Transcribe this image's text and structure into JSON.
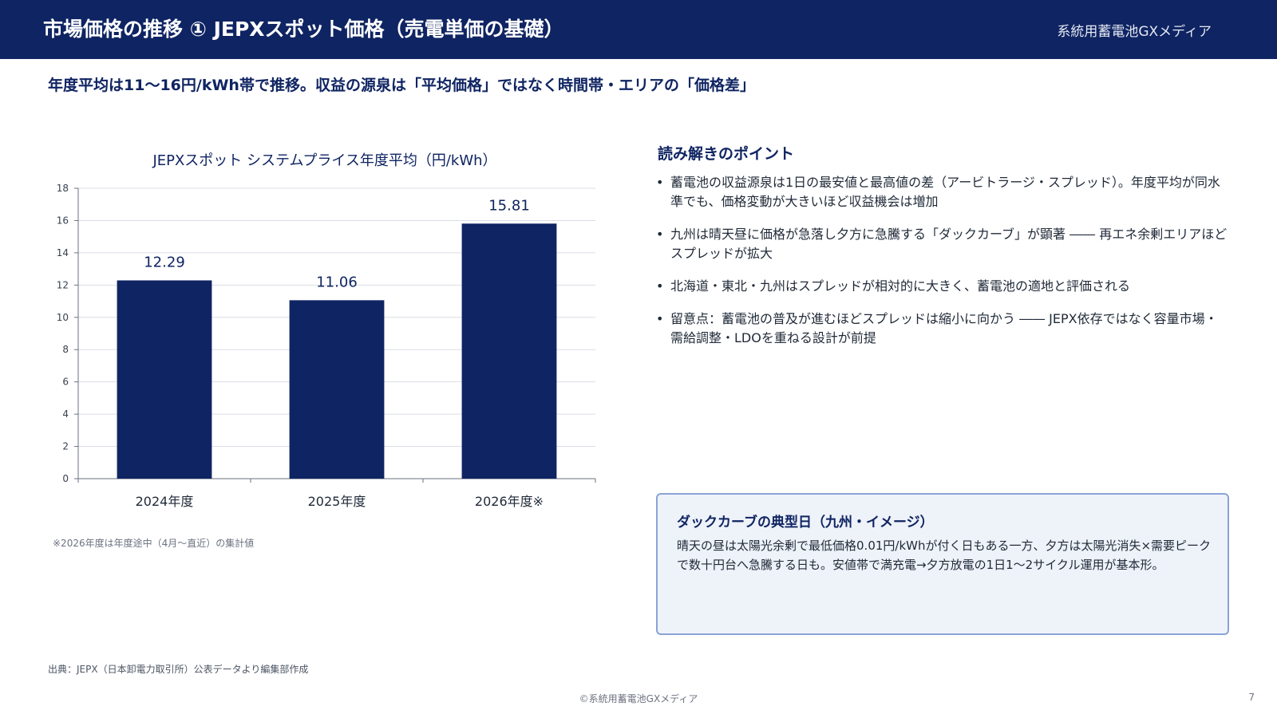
{
  "header": {
    "title": "市場価格の推移 ① JEPXスポット価格（売電単価の基礎）",
    "brand": "系統用蓄電池GXメディア"
  },
  "subtitle": "年度平均は11〜16円/kWh帯で推移。収益の源泉は「平均価格」ではなく時間帯・エリアの「価格差」",
  "chart_data": {
    "type": "bar",
    "title": "JEPXスポット システムプライス年度平均（円/kWh）",
    "categories": [
      "2024年度",
      "2025年度",
      "2026年度※"
    ],
    "values": [
      12.29,
      11.06,
      15.81
    ],
    "value_labels": [
      "12.29",
      "11.06",
      "15.81"
    ],
    "ylim": [
      0,
      18
    ],
    "yticks": [
      "0",
      "2",
      "4",
      "6",
      "8",
      "10",
      "12",
      "14",
      "16",
      "18"
    ],
    "grid": true,
    "bar_color": "#0f2462",
    "note": "※2026年度は年度途中（4月〜直近）の集計値"
  },
  "points": {
    "heading": "読み解きのポイント",
    "bullet": "•",
    "items": [
      "蓄電池の収益源泉は1日の最安値と最高値の差（アービトラージ・スプレッド）。年度平均が同水準でも、価格変動が大きいほど収益機会は増加",
      "九州は晴天昼に価格が急落し夕方に急騰する「ダックカーブ」が顕著 ―― 再エネ余剰エリアほどスプレッドが拡大",
      "北海道・東北・九州はスプレッドが相対的に大きく、蓄電池の適地と評価される",
      "留意点：蓄電池の普及が進むほどスプレッドは縮小に向かう ―― JEPX依存ではなく容量市場・需給調整・LDOを重ねる設計が前提"
    ]
  },
  "callout": {
    "title": "ダックカーブの典型日（九州・イメージ）",
    "body": "晴天の昼は太陽光余剰で最低価格0.01円/kWhが付く日もある一方、夕方は太陽光消失×需要ピークで数十円台へ急騰する日も。安値帯で満充電→夕方放電の1日1〜2サイクル運用が基本形。"
  },
  "source": "出典：JEPX（日本卸電力取引所）公表データより編集部作成",
  "footer": {
    "copyright": "©系統用蓄電池GXメディア",
    "page_number": "7"
  }
}
